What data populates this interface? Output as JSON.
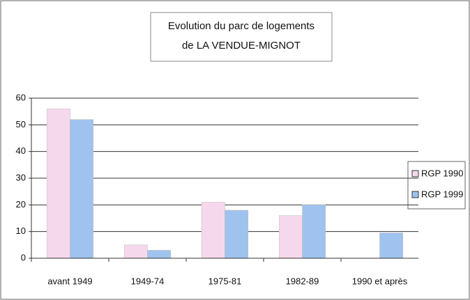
{
  "chart_data": {
    "type": "bar",
    "title": [
      "Evolution du parc de logements",
      "de LA VENDUE-MIGNOT"
    ],
    "categories": [
      "avant 1949",
      "1949-74",
      "1975-81",
      "1982-89",
      "1990 et après"
    ],
    "series": [
      {
        "name": "RGP 1990",
        "color": "#f6d8ec",
        "values": [
          56,
          5,
          21,
          16,
          null
        ]
      },
      {
        "name": "RGP 1999",
        "color": "#9fc3ee",
        "values": [
          52,
          3,
          18,
          20,
          9.5
        ]
      }
    ],
    "ylim": [
      0,
      60
    ],
    "yticks": [
      0,
      10,
      20,
      30,
      40,
      50,
      60
    ],
    "grid": true,
    "legend": "right"
  }
}
